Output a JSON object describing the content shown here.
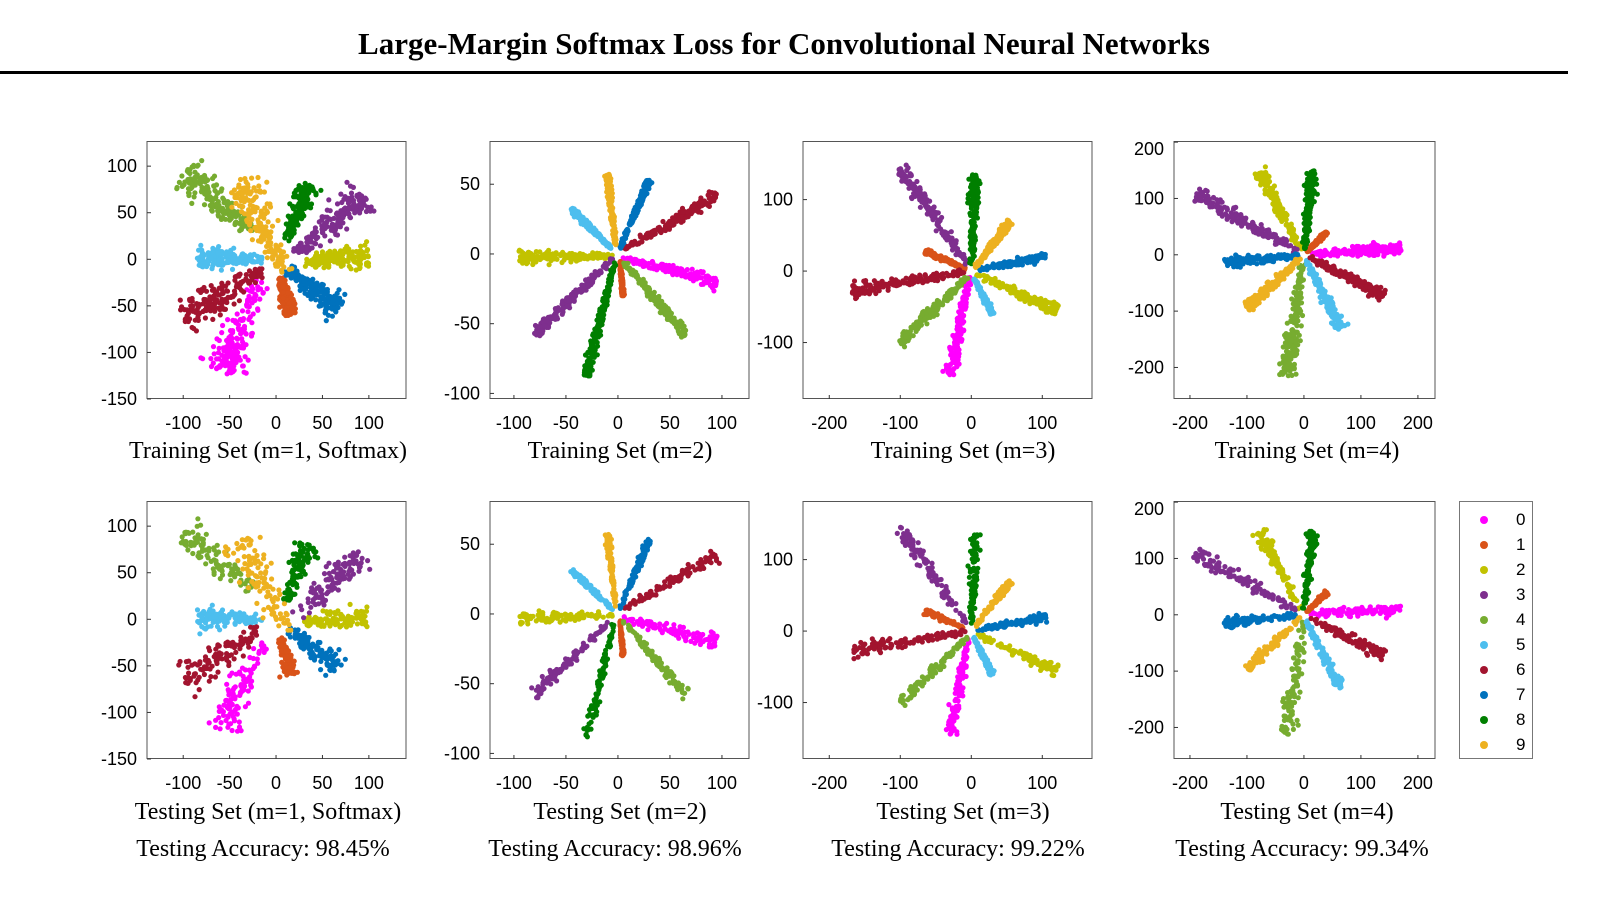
{
  "header": {
    "title": "Large-Margin Softmax Loss for Convolutional Neural Networks"
  },
  "legend": {
    "items": [
      {
        "label": "0",
        "color": "#ff00ff"
      },
      {
        "label": "1",
        "color": "#d95319"
      },
      {
        "label": "2",
        "color": "#c2c200"
      },
      {
        "label": "3",
        "color": "#7e2f8e"
      },
      {
        "label": "4",
        "color": "#77ac30"
      },
      {
        "label": "5",
        "color": "#4dbeee"
      },
      {
        "label": "6",
        "color": "#a2142f"
      },
      {
        "label": "7",
        "color": "#0072bd"
      },
      {
        "label": "8",
        "color": "#007f00"
      },
      {
        "label": "9",
        "color": "#edb120"
      }
    ]
  },
  "captions": {
    "train": [
      "Training Set (m=1, Softmax)",
      "Training Set (m=2)",
      "Training Set (m=3)",
      "Training Set (m=4)"
    ],
    "test": [
      "Testing Set (m=1, Softmax)",
      "Testing Set (m=2)",
      "Testing Set (m=3)",
      "Testing Set (m=4)"
    ],
    "accuracy": [
      "Testing Accuracy: 98.45%",
      "Testing Accuracy: 98.96%",
      "Testing Accuracy: 99.22%",
      "Testing Accuracy: 99.34%"
    ]
  },
  "chart_data": [
    {
      "type": "scatter",
      "m": 1,
      "xlim": [
        -139,
        140
      ],
      "ylim": [
        -150,
        127
      ],
      "xticks": [
        -100,
        -50,
        0,
        50,
        100
      ],
      "yticks": [
        -150,
        -100,
        -50,
        0,
        50,
        100
      ],
      "spread": 9,
      "rays": [
        [
          -15,
          -25,
          -60,
          -120
        ],
        [
          5,
          -20,
          15,
          -60
        ],
        [
          30,
          -3,
          100,
          3
        ],
        [
          20,
          5,
          95,
          68
        ],
        [
          -25,
          30,
          -100,
          92
        ],
        [
          -15,
          0,
          -85,
          2
        ],
        [
          -15,
          -10,
          -100,
          -65
        ],
        [
          10,
          -10,
          68,
          -52
        ],
        [
          10,
          20,
          35,
          80
        ],
        [
          10,
          -15,
          -40,
          85
        ]
      ]
    },
    {
      "type": "scatter",
      "m": 2,
      "xlim": [
        -123,
        126
      ],
      "ylim": [
        -104,
        81
      ],
      "xticks": [
        -100,
        -50,
        0,
        50,
        100
      ],
      "yticks": [
        -100,
        -50,
        0,
        50
      ],
      "spread": 2.5,
      "rays": [
        [
          5,
          -3,
          95,
          -20
        ],
        [
          2,
          -5,
          5,
          -30
        ],
        [
          -5,
          -1,
          -95,
          -3
        ],
        [
          -5,
          -3,
          -80,
          -58
        ],
        [
          5,
          -5,
          65,
          -58
        ],
        [
          -5,
          3,
          -45,
          32
        ],
        [
          5,
          3,
          95,
          42
        ],
        [
          2,
          4,
          30,
          53
        ],
        [
          -3,
          -5,
          -30,
          -88
        ],
        [
          -2,
          5,
          -10,
          57
        ]
      ]
    },
    {
      "type": "scatter",
      "m": 3,
      "xlim": [
        -237,
        170
      ],
      "ylim": [
        -179,
        182
      ],
      "xticks": [
        -200,
        -100,
        0,
        100
      ],
      "yticks": [
        -100,
        0,
        100
      ],
      "spread": 3,
      "rays": [
        [
          -3,
          -8,
          -30,
          -145
        ],
        [
          -8,
          3,
          -65,
          28
        ],
        [
          8,
          -5,
          120,
          -55
        ],
        [
          -5,
          8,
          -100,
          145
        ],
        [
          -5,
          -8,
          -100,
          -100
        ],
        [
          3,
          -8,
          30,
          -60
        ],
        [
          -8,
          -1,
          -170,
          -28
        ],
        [
          8,
          2,
          105,
          20
        ],
        [
          1,
          10,
          5,
          135
        ],
        [
          5,
          5,
          55,
          70
        ]
      ]
    },
    {
      "type": "scatter",
      "m": 4,
      "xlim": [
        -228,
        230
      ],
      "ylim": [
        -256,
        202
      ],
      "xticks": [
        -200,
        -100,
        0,
        100,
        200
      ],
      "yticks": [
        -200,
        -100,
        0,
        100,
        200
      ],
      "spread": 3.5,
      "rays": [
        [
          10,
          1,
          170,
          12
        ],
        [
          5,
          5,
          40,
          40
        ],
        [
          -5,
          10,
          -80,
          150
        ],
        [
          -10,
          6,
          -190,
          108
        ],
        [
          -1,
          -10,
          -30,
          -215
        ],
        [
          4,
          -10,
          65,
          -130
        ],
        [
          10,
          -5,
          140,
          -72
        ],
        [
          -10,
          -1,
          -140,
          -15
        ],
        [
          1,
          10,
          15,
          150
        ],
        [
          -6,
          -6,
          -100,
          -95
        ]
      ]
    }
  ]
}
